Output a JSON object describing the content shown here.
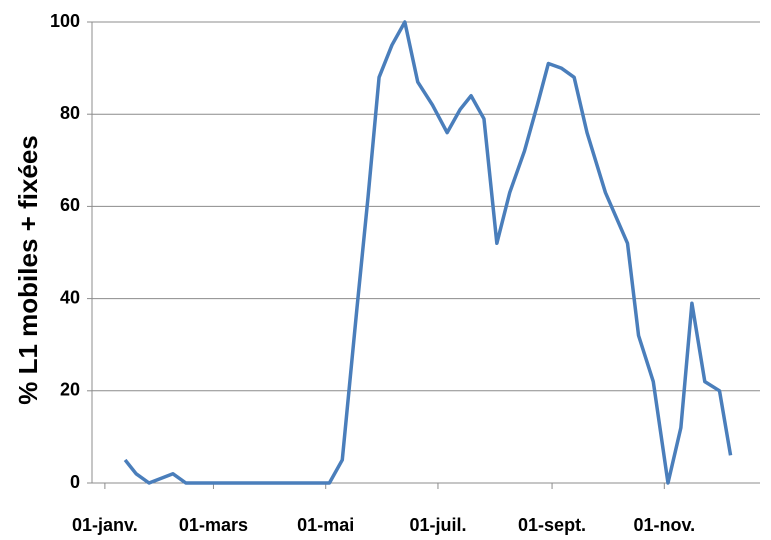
{
  "chart_data": {
    "type": "line",
    "y_label": "% L1 mobiles + fixées",
    "x": [
      12,
      18,
      25,
      38,
      45,
      123,
      130,
      138,
      144,
      150,
      157,
      164,
      171,
      179,
      187,
      194,
      200,
      207,
      214,
      221,
      229,
      236,
      242,
      249,
      256,
      263,
      273,
      285,
      291,
      299,
      307,
      314,
      320,
      327,
      335,
      341
    ],
    "series": [
      {
        "name": "% L1 mobiles + fixées",
        "color": "#4a7ebb",
        "values": [
          5,
          2,
          0,
          2,
          0,
          0,
          5,
          38,
          62,
          88,
          95,
          100,
          87,
          82,
          76,
          81,
          84,
          79,
          52,
          63,
          72,
          82,
          91,
          90,
          88,
          76,
          63,
          52,
          32,
          22,
          0,
          12,
          39,
          22,
          20,
          6
        ]
      }
    ],
    "xlim": [
      -6,
      357
    ],
    "xticks": [
      {
        "value": 1,
        "label": "01-janv."
      },
      {
        "value": 60,
        "label": "01-mars"
      },
      {
        "value": 121,
        "label": "01-mai"
      },
      {
        "value": 182,
        "label": "01-juil."
      },
      {
        "value": 244,
        "label": "01-sept."
      },
      {
        "value": 305,
        "label": "01-nov."
      }
    ],
    "ylim": [
      0,
      100
    ],
    "yticks": [
      0,
      20,
      40,
      60,
      80,
      100
    ],
    "grid": true
  }
}
